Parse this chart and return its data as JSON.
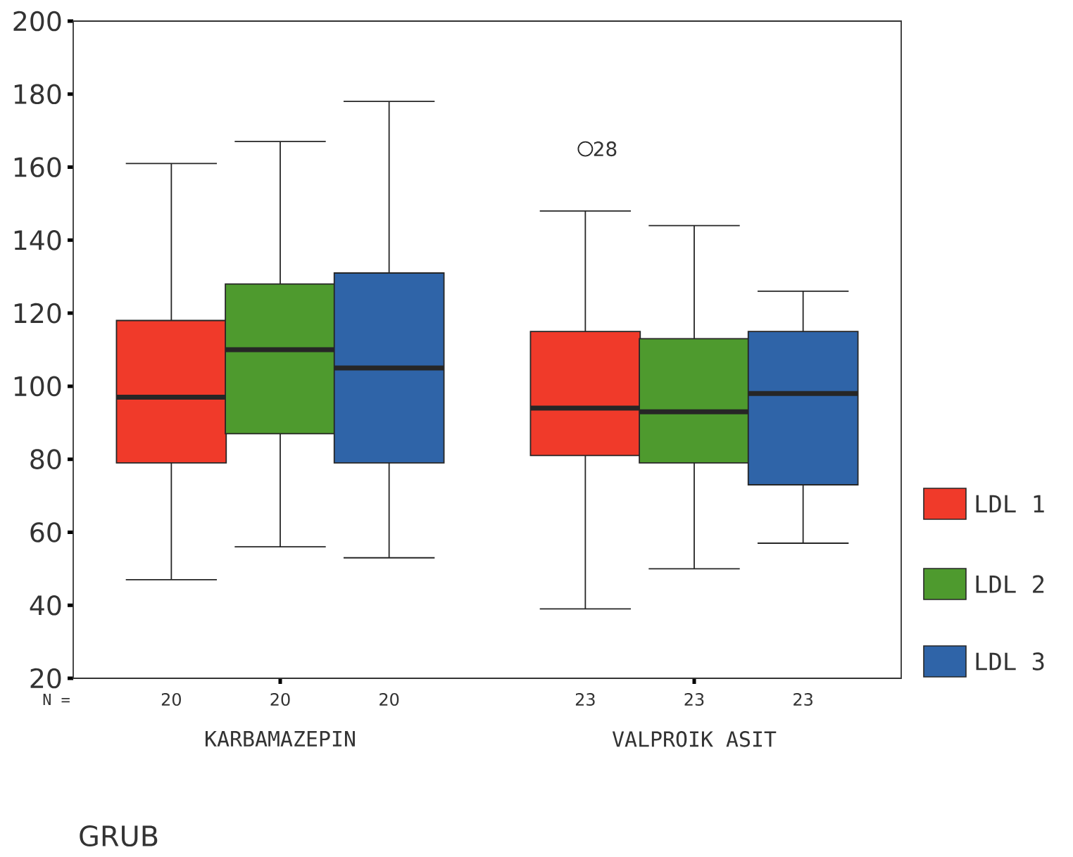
{
  "chart_data": {
    "type": "box",
    "xlabel": "GRUB",
    "categories": [
      "KARBAMAZEPIN",
      "VALPROIK ASIT"
    ],
    "series": [
      {
        "name": "LDL 1",
        "color": "#f03a2a",
        "boxes": [
          {
            "low": 47,
            "q1": 79,
            "median": 97,
            "q3": 118,
            "high": 161
          },
          {
            "low": 39,
            "q1": 81,
            "median": 94,
            "q3": 115,
            "high": 148,
            "outliers": [
              165
            ]
          }
        ]
      },
      {
        "name": "LDL 2",
        "color": "#4e9a2e",
        "boxes": [
          {
            "low": 56,
            "q1": 87,
            "median": 110,
            "q3": 128,
            "high": 167
          },
          {
            "low": 50,
            "q1": 79,
            "median": 93,
            "q3": 113,
            "high": 144
          }
        ]
      },
      {
        "name": "LDL 3",
        "color": "#2f64a8",
        "boxes": [
          {
            "low": 53,
            "q1": 79,
            "median": 105,
            "q3": 131,
            "high": 178
          },
          {
            "low": 57,
            "q1": 73,
            "median": 98,
            "q3": 115,
            "high": 126
          }
        ]
      }
    ],
    "ylim": [
      20,
      200
    ],
    "yticks": [
      20,
      40,
      60,
      80,
      100,
      120,
      140,
      160,
      180,
      200
    ],
    "legend": "right",
    "grid": false,
    "annotations": [
      "N =",
      "20",
      "20",
      "20",
      "23",
      "23",
      "23",
      "28"
    ]
  }
}
